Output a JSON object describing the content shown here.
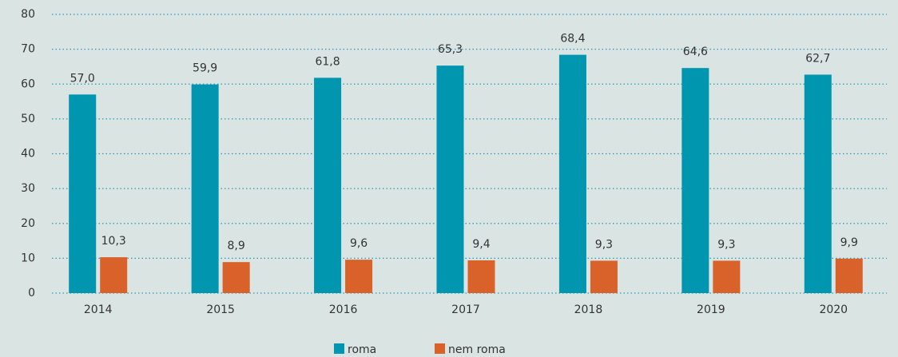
{
  "chart_data": {
    "type": "bar",
    "categories": [
      "2014",
      "2015",
      "2016",
      "2017",
      "2018",
      "2019",
      "2020"
    ],
    "series": [
      {
        "name": "roma",
        "color": "#0096b0",
        "values": [
          57.0,
          59.9,
          61.8,
          65.3,
          68.4,
          64.6,
          62.7
        ],
        "value_labels": [
          "57,0",
          "59,9",
          "61,8",
          "65,3",
          "68,4",
          "64,6",
          "62,7"
        ]
      },
      {
        "name": "nem roma",
        "color": "#d9622b",
        "values": [
          10.3,
          8.9,
          9.6,
          9.4,
          9.3,
          9.3,
          9.9
        ],
        "value_labels": [
          "10,3",
          "8,9",
          "9,6",
          "9,4",
          "9,3",
          "9,3",
          "9,9"
        ]
      }
    ],
    "ylim": [
      0,
      80
    ],
    "yticks": [
      0,
      10,
      20,
      30,
      40,
      50,
      60,
      70,
      80
    ],
    "grid": true,
    "legend": "bottom"
  }
}
